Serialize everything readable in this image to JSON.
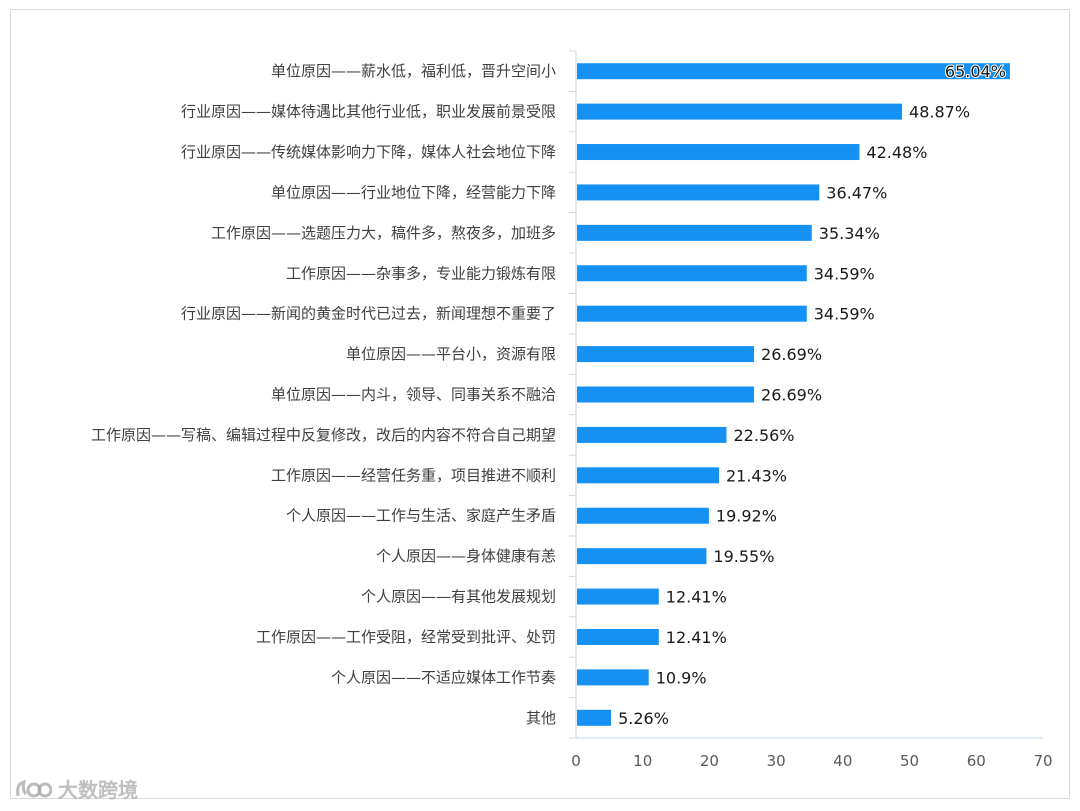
{
  "chart_data": {
    "type": "bar",
    "orientation": "horizontal",
    "categories": [
      "单位原因——薪水低，福利低，晋升空间小",
      "行业原因——媒体待遇比其他行业低，职业发展前景受限",
      "行业原因——传统媒体影响力下降，媒体人社会地位下降",
      "单位原因——行业地位下降，经营能力下降",
      "工作原因——选题压力大，稿件多，熬夜多，加班多",
      "工作原因——杂事多，专业能力锻炼有限",
      "行业原因——新闻的黄金时代已过去，新闻理想不重要了",
      "单位原因——平台小，资源有限",
      "单位原因——内斗，领导、同事关系不融洽",
      "工作原因——写稿、编辑过程中反复修改，改后的内容不符合自己期望",
      "工作原因——经营任务重，项目推进不顺利",
      "个人原因——工作与生活、家庭产生矛盾",
      "个人原因——身体健康有恙",
      "个人原因——有其他发展规划",
      "工作原因——工作受阻，经常受到批评、处罚",
      "个人原因——不适应媒体工作节奏",
      "其他"
    ],
    "values": [
      65.04,
      48.87,
      42.48,
      36.47,
      35.34,
      34.59,
      34.59,
      26.69,
      26.69,
      22.56,
      21.43,
      19.92,
      19.55,
      12.41,
      12.41,
      10.9,
      5.26
    ],
    "value_labels": [
      "65.04%",
      "48.87%",
      "42.48%",
      "36.47%",
      "35.34%",
      "34.59%",
      "34.59%",
      "26.69%",
      "26.69%",
      "22.56%",
      "21.43%",
      "19.92%",
      "19.55%",
      "12.41%",
      "12.41%",
      "10.9%",
      "5.26%"
    ],
    "xlim": [
      0,
      70
    ],
    "x_ticks": [
      "0",
      "10",
      "20",
      "30",
      "40",
      "50",
      "60",
      "70"
    ],
    "bar_color": "#1591F3",
    "grid": false,
    "legend": "none"
  },
  "watermark": {
    "text": "大数跨境",
    "icon": "logo-icon"
  }
}
